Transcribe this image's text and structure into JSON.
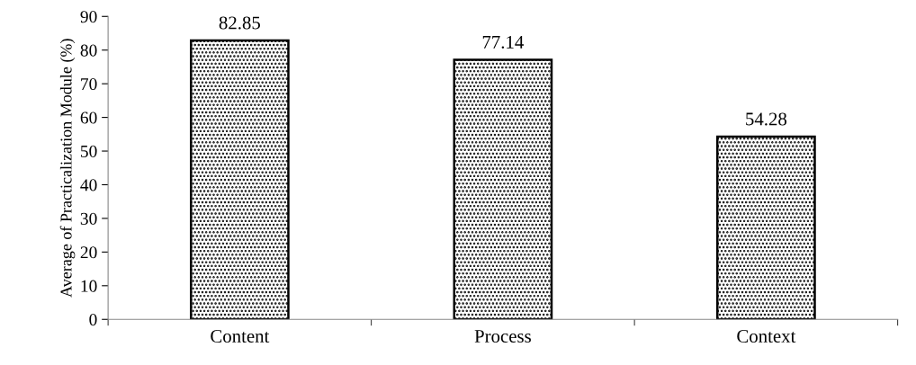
{
  "chart_data": {
    "type": "bar",
    "ylabel": "Average of Practicalization Module (%)",
    "categories": [
      "Content",
      "Process",
      "Context"
    ],
    "values": [
      82.85,
      77.14,
      54.28
    ],
    "color": "#000000",
    "ylim": [
      0,
      90
    ],
    "yticks": [
      0,
      10,
      20,
      30,
      40,
      50,
      60,
      70,
      80,
      90
    ],
    "data_labels": true,
    "grid": false,
    "legend": false
  }
}
